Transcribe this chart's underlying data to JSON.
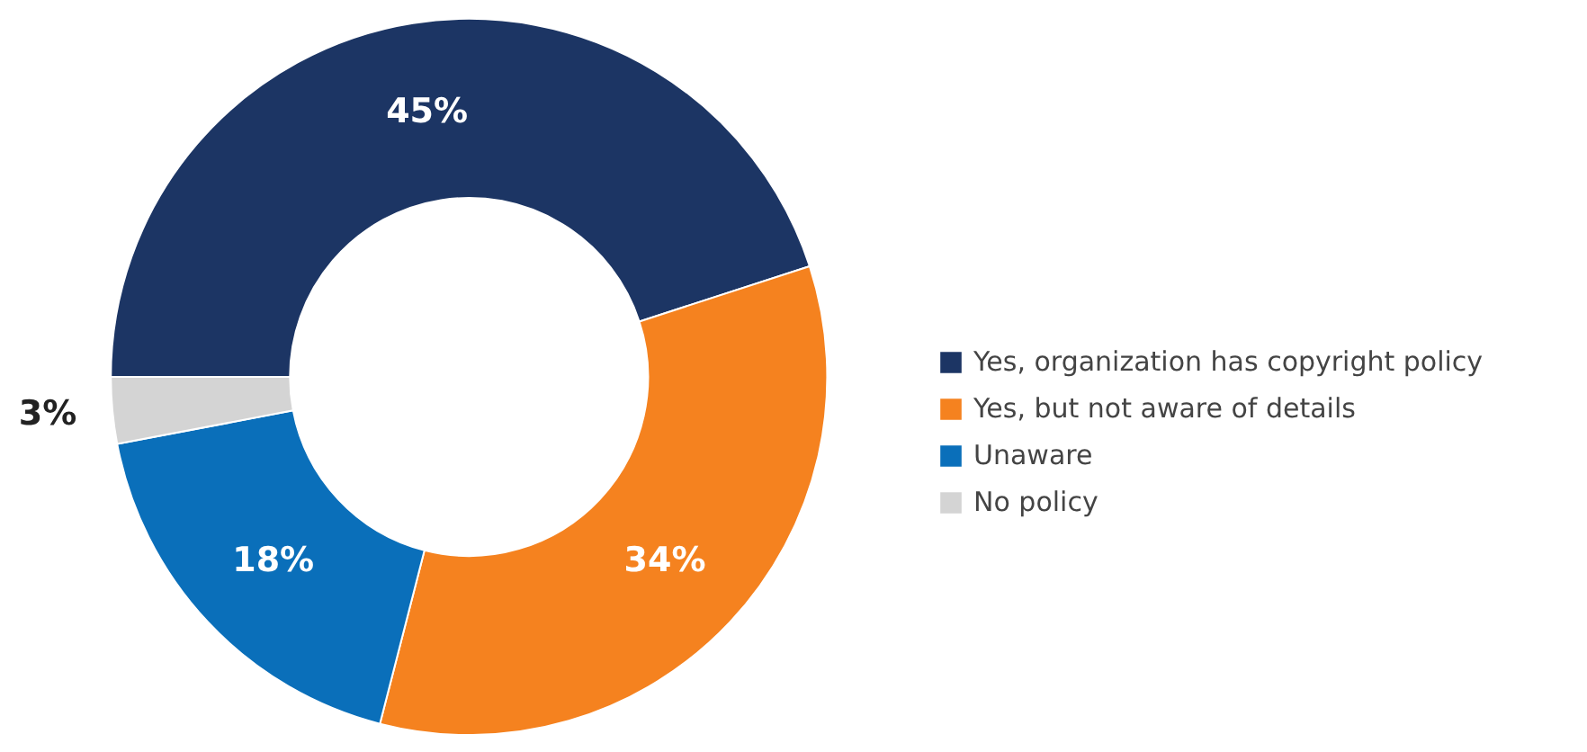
{
  "chart_data": {
    "type": "donut",
    "categories": [
      "Yes, organization has copyright policy",
      "Yes, but not aware of details",
      "Unaware",
      "No policy"
    ],
    "values": [
      45,
      34,
      18,
      3
    ],
    "colors": [
      "#1c3564",
      "#f5821f",
      "#0a6fba",
      "#d4d4d4"
    ],
    "value_labels": [
      "45%",
      "34%",
      "18%",
      "3%"
    ],
    "legend": "right"
  }
}
